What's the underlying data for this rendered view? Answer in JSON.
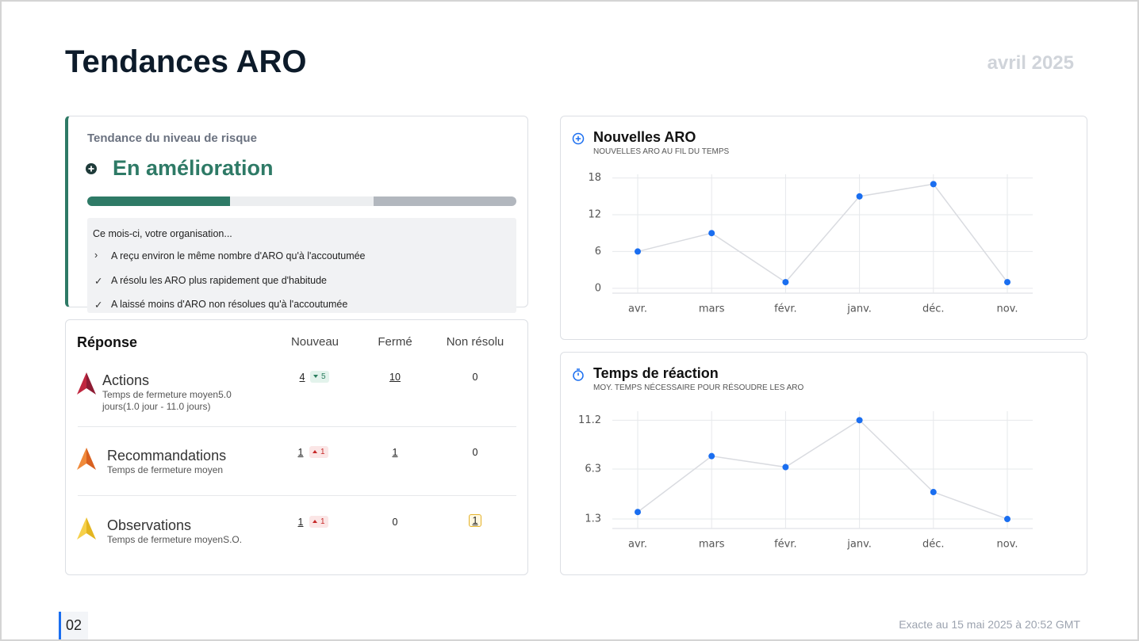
{
  "header": {
    "title": "Tendances ARO",
    "period": "avril 2025"
  },
  "risk": {
    "label": "Tendance du niveau de risque",
    "status": "En amélioration",
    "intro": "Ce mois-ci, votre organisation...",
    "items": [
      "A reçu environ le même nombre d'ARO qu'à l'accoutumée",
      "A résolu les ARO plus rapidement que d'habitude",
      "A laissé moins d'ARO non résolues qu'à l'accoutumée"
    ]
  },
  "response": {
    "title": "Réponse",
    "columns": [
      "Nouveau",
      "Fermé",
      "Non résolu"
    ],
    "rows": [
      {
        "name": "Actions",
        "subtitle": "Temps de fermeture moyen5.0 jours(1.0 jour - 11.0 jours)",
        "new": 4,
        "delta": 5,
        "closed": 10,
        "open": 0
      },
      {
        "name": "Recommandations",
        "subtitle": "Temps de fermeture moyen",
        "new": 1,
        "delta": 1,
        "closed": 1,
        "open": 0
      },
      {
        "name": "Observations",
        "subtitle": "Temps de fermeture moyenS.O.",
        "new": 1,
        "delta": 1,
        "closed": 0,
        "open": 1
      }
    ]
  },
  "chart_data": [
    {
      "type": "line",
      "title": "Nouvelles ARO",
      "subtitle": "NOUVELLES ARO AU FIL DU TEMPS",
      "categories": [
        "avr.",
        "mars",
        "févr.",
        "janv.",
        "déc.",
        "nov."
      ],
      "values": [
        6,
        9,
        1,
        15,
        17,
        1
      ],
      "color": "#1a6ef0",
      "ylim": [
        -0.8,
        18.6
      ],
      "yticks": [
        0,
        6,
        12,
        18
      ],
      "grid": true
    },
    {
      "type": "line",
      "title": "Temps de réaction",
      "subtitle": "MOY. TEMPS NÉCESSAIRE POUR RÉSOUDRE LES ARO",
      "categories": [
        "avr.",
        "mars",
        "févr.",
        "janv.",
        "déc.",
        "nov."
      ],
      "values": [
        2.0,
        7.6,
        6.5,
        11.2,
        4.0,
        1.3
      ],
      "color": "#1a6ef0",
      "ylim": [
        0.35,
        12.1
      ],
      "yticks": [
        1.3,
        6.3,
        11.2
      ],
      "grid": true
    }
  ],
  "footer": {
    "page": "02",
    "timestamp": "Exacte au 15 mai 2025 à 20:52 GMT"
  }
}
